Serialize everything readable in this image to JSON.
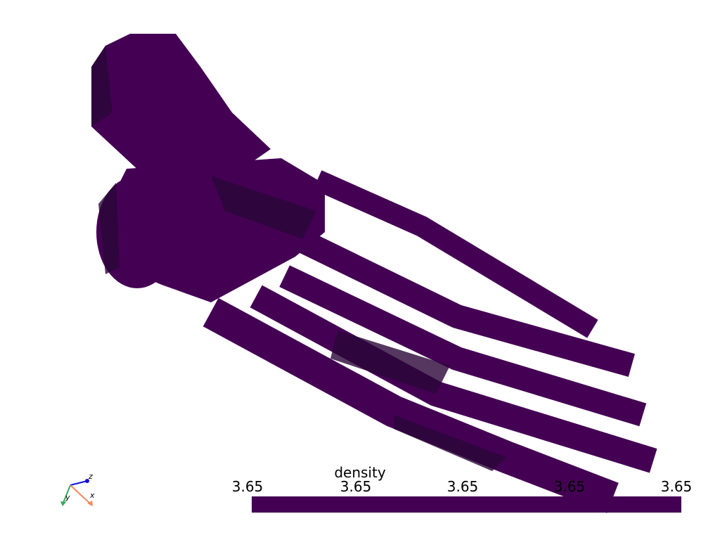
{
  "scalar_bar": {
    "title": "density",
    "ticks": [
      "3.65",
      "3.65",
      "3.65",
      "3.65",
      "3.65"
    ],
    "color": "#440154"
  },
  "mesh": {
    "color": "#440154",
    "shade_color": "#2b0638"
  },
  "axes_widget": {
    "x_label": "x",
    "y_label": "y",
    "z_label": "z",
    "x_color": "#f4865f",
    "y_color": "#3aa85c",
    "z_color": "#1010e0"
  }
}
